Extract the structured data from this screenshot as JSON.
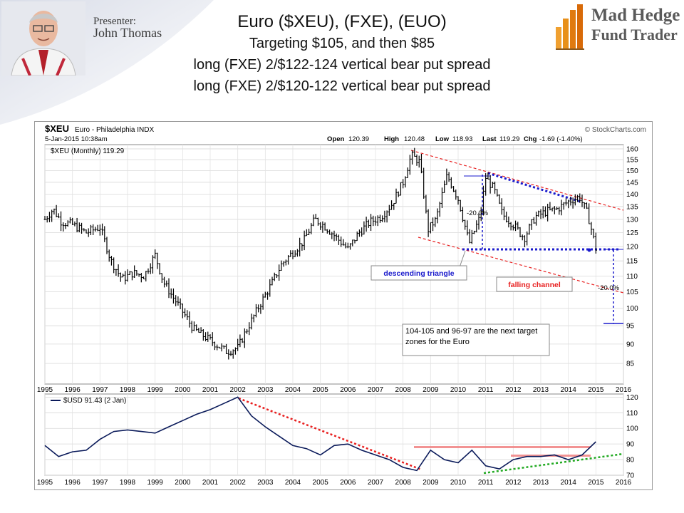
{
  "presenter": {
    "label": "Presenter:",
    "name": "John Thomas"
  },
  "logo": {
    "line1": "Mad Hedge",
    "line2": "Fund Trader"
  },
  "slide_title": {
    "main": "Euro ($XEU), (FXE), (EUO)",
    "line1": "Targeting $105, and then $85",
    "line2": "long (FXE) 2/$122-124 vertical bear put spread",
    "line3": "long (FXE) 2/$120-122 vertical bear put spread"
  },
  "colors": {
    "price": "#000000",
    "channel": "#e82020",
    "trend_blue": "#1a1acc",
    "usd_line": "#0a1a5a",
    "green_trend": "#22aa22",
    "resistance": "#f08080"
  },
  "chart_data": [
    {
      "type": "line",
      "style": "OHLC bars (monthly)",
      "symbol": "$XEU",
      "name": "Euro - Philadelphia INDX",
      "watermark": "© StockCharts.com",
      "date": "5-Jan-2015 10:38am",
      "quote": {
        "open_label": "Open",
        "open": "120.39",
        "high_label": "High",
        "high": "120.48",
        "low_label": "Low",
        "low": "118.93",
        "last_label": "Last",
        "last": "119.29",
        "chg_label": "Chg",
        "chg": "-1.69 (-1.40%)"
      },
      "legend": "$XEU (Monthly) 119.29",
      "xlim": [
        1995,
        2016
      ],
      "ylim": [
        80,
        162
      ],
      "ylog": true,
      "y_ticks": [
        85,
        90,
        95,
        100,
        105,
        110,
        115,
        120,
        125,
        130,
        135,
        140,
        145,
        150,
        155,
        160
      ],
      "x_ticks": [
        "1995",
        "1996",
        "1997",
        "1998",
        "1999",
        "2000",
        "2001",
        "2002",
        "2003",
        "2004",
        "2005",
        "2006",
        "2007",
        "2008",
        "2009",
        "2010",
        "2011",
        "2012",
        "2013",
        "2014",
        "2015",
        "2016"
      ],
      "grid": true,
      "series": [
        {
          "x": [
            1995.0,
            1995.3,
            1995.6,
            1996.0,
            1996.5,
            1997.0,
            1997.4,
            1997.8,
            1998.2,
            1998.6,
            1999.0,
            1999.3,
            1999.6,
            2000.0,
            2000.4,
            2000.8,
            2001.2,
            2001.6,
            2002.0,
            2002.4,
            2002.8,
            2003.2,
            2003.6,
            2004.0,
            2004.4,
            2004.8,
            2005.2,
            2005.6,
            2006.0,
            2006.4,
            2006.8,
            2007.2,
            2007.6,
            2008.0,
            2008.3,
            2008.6,
            2008.9,
            2009.2,
            2009.6,
            2010.0,
            2010.4,
            2010.8,
            2011.0,
            2011.3,
            2011.6,
            2012.0,
            2012.4,
            2012.8,
            2013.2,
            2013.6,
            2014.0,
            2014.4,
            2014.7,
            2015.0
          ],
          "close": [
            130,
            134,
            129,
            128,
            125,
            127,
            115,
            109,
            111,
            110,
            117,
            108,
            104,
            99,
            94,
            92,
            90,
            88,
            89,
            95,
            101,
            107,
            114,
            118,
            122,
            130,
            127,
            123,
            119,
            125,
            129,
            131,
            136,
            145,
            157,
            154,
            126,
            130,
            148,
            138,
            121,
            131,
            147,
            142,
            132,
            128,
            123,
            131,
            133,
            134,
            137,
            139,
            132,
            119.29
          ]
        }
      ],
      "annotations": [
        {
          "text": "descending triangle",
          "color": "#1a1acc"
        },
        {
          "text": "falling channel",
          "color": "#e82020"
        },
        {
          "text": "-20.0%"
        },
        {
          "text": "-20.0%"
        },
        {
          "text": "104-105 and 96-97 are the next target zones for the Euro"
        }
      ]
    },
    {
      "type": "line",
      "symbol": "$USD",
      "legend": "$USD 91.43 (2 Jan)",
      "xlim": [
        1995,
        2016
      ],
      "ylim": [
        70,
        122
      ],
      "y_ticks": [
        70,
        80,
        90,
        100,
        110,
        120
      ],
      "x_ticks": [
        "1995",
        "1996",
        "1997",
        "1998",
        "1999",
        "2000",
        "2001",
        "2002",
        "2003",
        "2004",
        "2005",
        "2006",
        "2007",
        "2008",
        "2009",
        "2010",
        "2011",
        "2012",
        "2013",
        "2014",
        "2015",
        "2016"
      ],
      "grid": true,
      "series": [
        {
          "x": [
            1995.0,
            1995.5,
            1996.0,
            1996.5,
            1997.0,
            1997.5,
            1998.0,
            1998.5,
            1999.0,
            1999.5,
            2000.0,
            2000.5,
            2001.0,
            2001.5,
            2002.0,
            2002.5,
            2003.0,
            2003.5,
            2004.0,
            2004.5,
            2005.0,
            2005.5,
            2006.0,
            2006.5,
            2007.0,
            2007.5,
            2008.0,
            2008.5,
            2009.0,
            2009.5,
            2010.0,
            2010.5,
            2011.0,
            2011.5,
            2012.0,
            2012.5,
            2013.0,
            2013.5,
            2014.0,
            2014.5,
            2015.0
          ],
          "values": [
            89,
            82,
            85,
            86,
            93,
            98,
            99,
            98,
            97,
            101,
            105,
            109,
            112,
            116,
            120,
            108,
            101,
            95,
            89,
            87,
            83,
            89,
            90,
            86,
            83,
            80,
            75,
            73,
            86,
            80,
            78,
            86,
            76,
            74,
            80,
            82,
            82,
            83,
            80,
            83,
            91.43
          ]
        }
      ]
    }
  ]
}
